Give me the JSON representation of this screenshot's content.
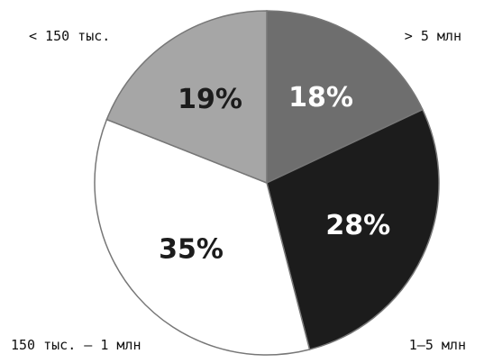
{
  "chart_data": {
    "type": "pie",
    "title": "",
    "slices": [
      {
        "label": "> 5 млн",
        "value": 18,
        "value_label": "18%",
        "color": "#6e6e6e",
        "text_color": "#ffffff"
      },
      {
        "label": "1–5 млн",
        "value": 28,
        "value_label": "28%",
        "color": "#1c1c1c",
        "text_color": "#ffffff"
      },
      {
        "label": "150 тыс. – 1 млн",
        "value": 35,
        "value_label": "35%",
        "color": "#ffffff",
        "text_color": "#1c1c1c"
      },
      {
        "label": "< 150 тыс.",
        "value": 19,
        "value_label": "19%",
        "color": "#a6a6a6",
        "text_color": "#1c1c1c"
      }
    ],
    "start_angle": "12 o'clock",
    "direction": "clockwise",
    "legend": "outer labels at the four corners"
  }
}
